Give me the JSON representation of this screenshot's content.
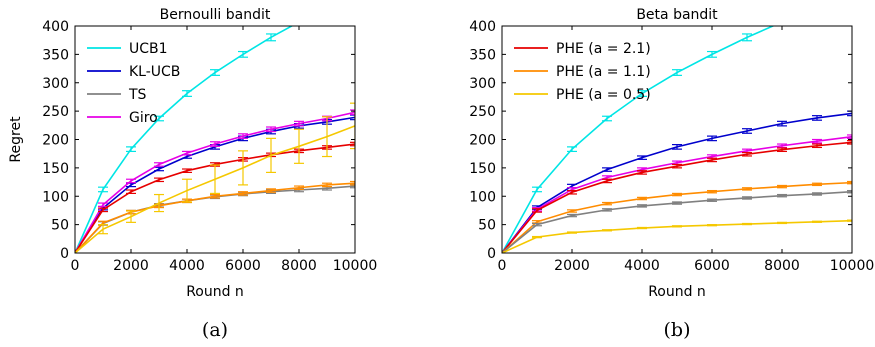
{
  "chart_data": [
    {
      "type": "line",
      "panel": "a",
      "title": "Bernoulli bandit",
      "caption": "(a)",
      "xlabel": "Round n",
      "ylabel": "Regret",
      "xlim": [
        0,
        10000
      ],
      "ylim": [
        0,
        400
      ],
      "xticks": [
        "0",
        "2000",
        "4000",
        "6000",
        "8000",
        "10000"
      ],
      "yticks": [
        "0",
        "50",
        "100",
        "150",
        "200",
        "250",
        "300",
        "350",
        "400"
      ],
      "grid": false,
      "legend": "top-left",
      "legend_entries": [
        "UCB1",
        "KL-UCB",
        "TS",
        "Giro"
      ],
      "x": [
        0,
        1000,
        2000,
        3000,
        4000,
        5000,
        6000,
        7000,
        8000,
        9000,
        10000
      ],
      "series": [
        {
          "name": "UCB1",
          "color": "#00e5e5",
          "in_legend": true,
          "values": [
            0,
            112,
            183,
            237,
            281,
            318,
            350,
            380,
            407,
            null,
            null
          ],
          "errors": [
            0,
            4,
            4,
            4,
            5,
            5,
            5,
            6,
            6,
            null,
            null
          ]
        },
        {
          "name": "KL-UCB",
          "color": "#0000cc",
          "in_legend": true,
          "values": [
            0,
            79,
            120,
            148,
            170,
            187,
            202,
            214,
            224,
            231,
            239
          ],
          "errors": [
            0,
            3,
            3,
            3,
            3,
            4,
            4,
            4,
            4,
            4,
            4
          ]
        },
        {
          "name": "TS",
          "color": "#808080",
          "in_legend": true,
          "values": [
            0,
            52,
            72,
            84,
            92,
            99,
            104,
            108,
            111,
            114,
            118
          ],
          "errors": [
            0,
            3,
            3,
            3,
            3,
            3,
            3,
            3,
            3,
            3,
            3
          ]
        },
        {
          "name": "Giro",
          "color": "#e600e6",
          "in_legend": true,
          "values": [
            0,
            85,
            127,
            156,
            176,
            192,
            206,
            218,
            228,
            237,
            248
          ],
          "errors": [
            0,
            3,
            3,
            3,
            3,
            4,
            4,
            4,
            4,
            4,
            4
          ]
        },
        {
          "color": "#e60000",
          "in_legend": false,
          "values": [
            0,
            76,
            108,
            129,
            145,
            156,
            165,
            173,
            180,
            186,
            192
          ],
          "errors": [
            0,
            3,
            3,
            3,
            3,
            3,
            3,
            3,
            3,
            3,
            3
          ]
        },
        {
          "color": "#ff8c00",
          "in_legend": false,
          "values": [
            0,
            53,
            72,
            83,
            92,
            100,
            105,
            110,
            115,
            120,
            123
          ],
          "errors": [
            0,
            3,
            3,
            3,
            3,
            3,
            3,
            3,
            3,
            3,
            3
          ]
        },
        {
          "color": "#f5c800",
          "in_legend": false,
          "values": [
            0,
            42,
            64,
            88,
            110,
            130,
            150,
            172,
            188,
            205,
            224
          ],
          "errors": [
            0,
            8,
            10,
            15,
            20,
            25,
            30,
            30,
            30,
            35,
            40
          ]
        }
      ]
    },
    {
      "type": "line",
      "panel": "b",
      "title": "Beta bandit",
      "caption": "(b)",
      "xlabel": "Round n",
      "ylabel": "",
      "xlim": [
        0,
        10000
      ],
      "ylim": [
        0,
        400
      ],
      "xticks": [
        "0",
        "2000",
        "4000",
        "6000",
        "8000",
        "10000"
      ],
      "yticks": [
        "0",
        "50",
        "100",
        "150",
        "200",
        "250",
        "300",
        "350",
        "400"
      ],
      "grid": false,
      "legend": "top-left",
      "legend_entries": [
        "PHE (a = 2.1)",
        "PHE (a = 1.1)",
        "PHE (a = 0.5)"
      ],
      "x": [
        0,
        1000,
        2000,
        3000,
        4000,
        5000,
        6000,
        7000,
        8000,
        9000,
        10000
      ],
      "series": [
        {
          "color": "#00e5e5",
          "in_legend": false,
          "values": [
            0,
            112,
            183,
            237,
            281,
            318,
            350,
            380,
            407,
            null,
            null
          ],
          "errors": [
            0,
            4,
            4,
            4,
            5,
            5,
            5,
            6,
            6,
            null,
            null
          ]
        },
        {
          "color": "#0000cc",
          "in_legend": false,
          "values": [
            0,
            80,
            118,
            147,
            168,
            187,
            202,
            215,
            228,
            238,
            246
          ],
          "errors": [
            0,
            3,
            3,
            3,
            3,
            4,
            4,
            4,
            4,
            4,
            4
          ]
        },
        {
          "color": "#e600e6",
          "in_legend": false,
          "values": [
            0,
            77,
            112,
            133,
            147,
            159,
            170,
            180,
            189,
            197,
            205
          ],
          "errors": [
            0,
            3,
            3,
            3,
            3,
            3,
            3,
            3,
            3,
            3,
            3
          ]
        },
        {
          "name": "PHE (a = 2.1)",
          "color": "#e60000",
          "in_legend": true,
          "values": [
            0,
            75,
            107,
            127,
            142,
            153,
            164,
            174,
            182,
            189,
            195
          ],
          "errors": [
            0,
            3,
            3,
            3,
            3,
            3,
            3,
            3,
            3,
            3,
            3
          ]
        },
        {
          "name": "PHE (a = 1.1)",
          "color": "#ff8c00",
          "in_legend": true,
          "values": [
            0,
            55,
            74,
            87,
            96,
            103,
            108,
            113,
            117,
            121,
            124
          ],
          "errors": [
            0,
            2,
            2,
            2,
            2,
            2,
            2,
            2,
            2,
            2,
            2
          ]
        },
        {
          "color": "#808080",
          "in_legend": false,
          "values": [
            0,
            50,
            66,
            76,
            83,
            88,
            93,
            97,
            101,
            104,
            108
          ],
          "errors": [
            0,
            2,
            2,
            2,
            2,
            2,
            2,
            2,
            2,
            2,
            2
          ]
        },
        {
          "name": "PHE (a = 0.5)",
          "color": "#f5c800",
          "in_legend": true,
          "values": [
            0,
            28,
            36,
            40,
            44,
            47,
            49,
            51,
            53,
            55,
            57
          ],
          "errors": [
            0,
            1,
            1,
            1,
            1,
            1,
            1,
            1,
            1,
            1,
            1
          ]
        }
      ]
    }
  ]
}
